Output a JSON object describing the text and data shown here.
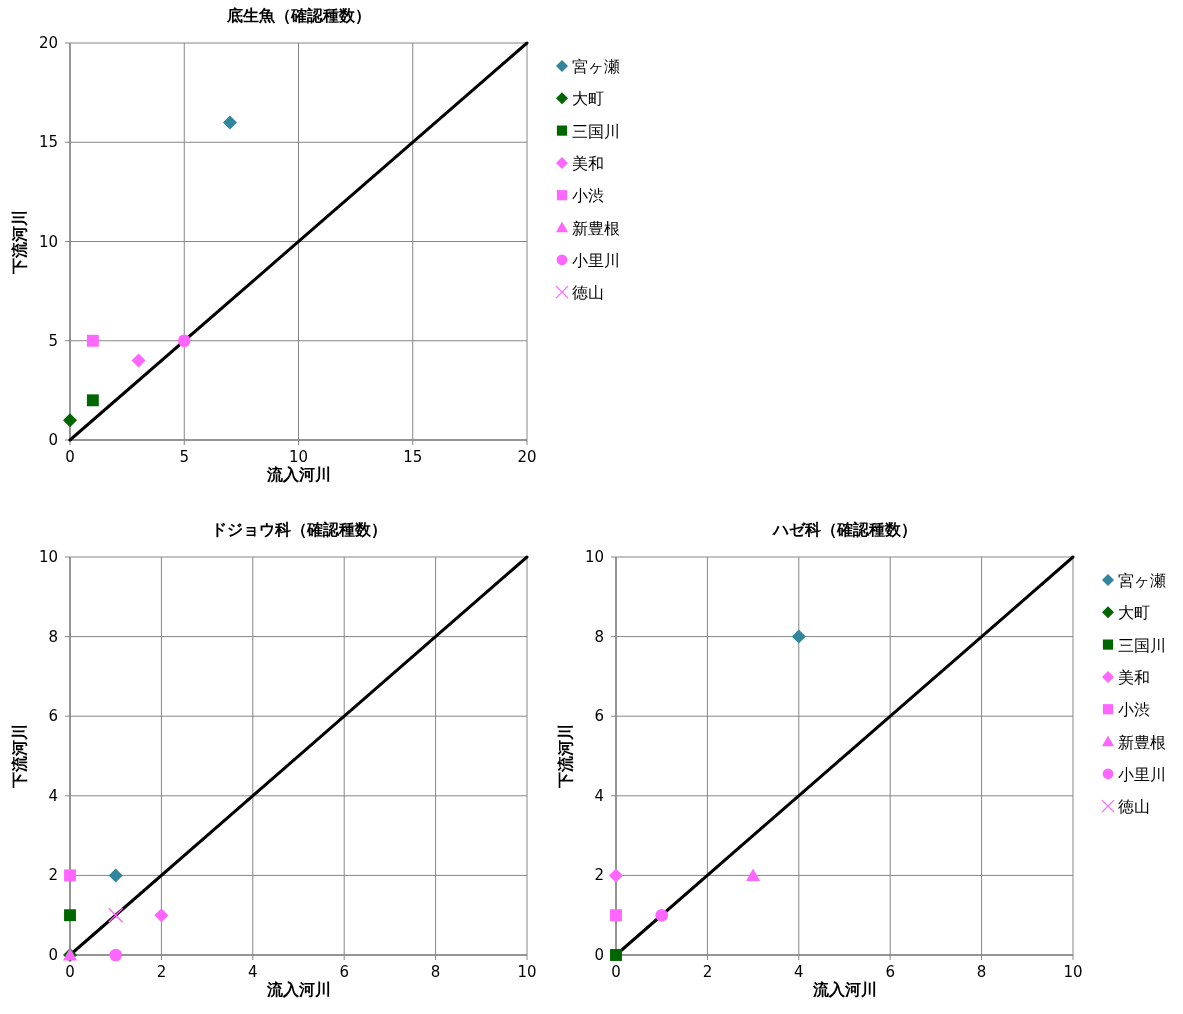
{
  "chart_data": [
    {
      "type": "scatter",
      "title": "底生魚（確認種数）",
      "xlabel": "流入河川",
      "ylabel": "下流河川",
      "xlim": [
        0,
        20
      ],
      "ylim": [
        0,
        20
      ],
      "xticks": [
        0,
        5,
        10,
        15,
        20
      ],
      "yticks": [
        0,
        5,
        10,
        15,
        20
      ],
      "grid": true,
      "legend": "right",
      "series": [
        {
          "type": "line",
          "color": "#000000",
          "marker": "none",
          "x": [
            0,
            20
          ],
          "values": [
            0,
            20
          ]
        },
        {
          "name": "宮ヶ瀬",
          "color": "#31859c",
          "marker": "diamond",
          "x": [
            7
          ],
          "values": [
            16
          ]
        },
        {
          "name": "大町",
          "color": "#006600",
          "marker": "diamond",
          "x": [
            0
          ],
          "values": [
            1
          ]
        },
        {
          "name": "三国川",
          "color": "#006600",
          "marker": "square",
          "x": [
            1
          ],
          "values": [
            2
          ]
        },
        {
          "name": "美和",
          "color": "#ff66ff",
          "marker": "diamond",
          "x": [
            3
          ],
          "values": [
            4
          ]
        },
        {
          "name": "小渋",
          "color": "#ff66ff",
          "marker": "square",
          "x": [
            1
          ],
          "values": [
            5
          ]
        },
        {
          "name": "新豊根",
          "color": "#ff66ff",
          "marker": "triangle",
          "x": [
            null
          ],
          "values": [
            null
          ]
        },
        {
          "name": "小里川",
          "color": "#ff66ff",
          "marker": "circle",
          "x": [
            5
          ],
          "values": [
            5
          ]
        },
        {
          "name": "徳山",
          "color": "#ff66ff",
          "marker": "cross",
          "x": [
            null
          ],
          "values": [
            null
          ]
        }
      ]
    },
    {
      "type": "scatter",
      "title": "ドジョウ科（確認種数）",
      "xlabel": "流入河川",
      "ylabel": "下流河川",
      "xlim": [
        0,
        10
      ],
      "ylim": [
        0,
        10
      ],
      "xticks": [
        0,
        2,
        4,
        6,
        8,
        10
      ],
      "yticks": [
        0,
        2,
        4,
        6,
        8,
        10
      ],
      "grid": true,
      "series": [
        {
          "type": "line",
          "color": "#000000",
          "marker": "none",
          "x": [
            0,
            10
          ],
          "values": [
            0,
            10
          ]
        },
        {
          "color": "#31859c",
          "marker": "diamond",
          "x": [
            1
          ],
          "values": [
            2
          ]
        },
        {
          "color": "#006600",
          "marker": "diamond",
          "x": [
            0
          ],
          "values": [
            0
          ]
        },
        {
          "color": "#006600",
          "marker": "square",
          "x": [
            0
          ],
          "values": [
            1
          ]
        },
        {
          "color": "#ff66ff",
          "marker": "diamond",
          "x": [
            2
          ],
          "values": [
            1
          ]
        },
        {
          "color": "#ff66ff",
          "marker": "square",
          "x": [
            0
          ],
          "values": [
            2
          ]
        },
        {
          "color": "#ff66ff",
          "marker": "triangle",
          "x": [
            0
          ],
          "values": [
            0
          ]
        },
        {
          "color": "#ff66ff",
          "marker": "circle",
          "x": [
            1
          ],
          "values": [
            0
          ]
        },
        {
          "color": "#ff66ff",
          "marker": "cross",
          "x": [
            1
          ],
          "values": [
            1
          ]
        }
      ]
    },
    {
      "type": "scatter",
      "title": "ハゼ科（確認種数）",
      "xlabel": "流入河川",
      "ylabel": "下流河川",
      "xlim": [
        0,
        10
      ],
      "ylim": [
        0,
        10
      ],
      "xticks": [
        0,
        2,
        4,
        6,
        8,
        10
      ],
      "yticks": [
        0,
        2,
        4,
        6,
        8,
        10
      ],
      "grid": true,
      "legend": "right",
      "series": [
        {
          "type": "line",
          "color": "#000000",
          "marker": "none",
          "x": [
            0,
            10
          ],
          "values": [
            0,
            10
          ]
        },
        {
          "name": "宮ヶ瀬",
          "color": "#31859c",
          "marker": "diamond",
          "x": [
            4
          ],
          "values": [
            8
          ]
        },
        {
          "name": "大町",
          "color": "#006600",
          "marker": "diamond",
          "x": [
            null
          ],
          "values": [
            null
          ]
        },
        {
          "name": "三国川",
          "color": "#006600",
          "marker": "square",
          "x": [
            0
          ],
          "values": [
            0
          ]
        },
        {
          "name": "美和",
          "color": "#ff66ff",
          "marker": "diamond",
          "x": [
            0
          ],
          "values": [
            2
          ]
        },
        {
          "name": "小渋",
          "color": "#ff66ff",
          "marker": "square",
          "x": [
            0
          ],
          "values": [
            1
          ]
        },
        {
          "name": "新豊根",
          "color": "#ff66ff",
          "marker": "triangle",
          "x": [
            3
          ],
          "values": [
            2
          ]
        },
        {
          "name": "小里川",
          "color": "#ff66ff",
          "marker": "circle",
          "x": [
            1
          ],
          "values": [
            1
          ]
        },
        {
          "name": "徳山",
          "color": "#ff66ff",
          "marker": "cross",
          "x": [
            null
          ],
          "values": [
            null
          ]
        }
      ]
    }
  ]
}
